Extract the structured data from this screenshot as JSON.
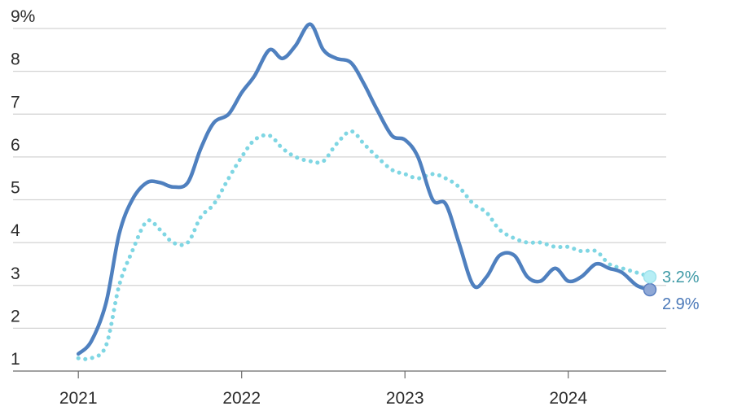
{
  "chart_data": {
    "type": "line",
    "title": "",
    "xlabel": "",
    "ylabel": "",
    "ylim": [
      1,
      9
    ],
    "xlim": [
      2020.6,
      2024.6
    ],
    "y_ticks": [
      {
        "value": 1,
        "label": "1"
      },
      {
        "value": 2,
        "label": "2"
      },
      {
        "value": 3,
        "label": "3"
      },
      {
        "value": 4,
        "label": "4"
      },
      {
        "value": 5,
        "label": "5"
      },
      {
        "value": 6,
        "label": "6"
      },
      {
        "value": 7,
        "label": "7"
      },
      {
        "value": 8,
        "label": "8"
      },
      {
        "value": 9,
        "label": "9%"
      }
    ],
    "x_ticks": [
      {
        "value": 2021,
        "label": "2021"
      },
      {
        "value": 2022,
        "label": "2022"
      },
      {
        "value": 2023,
        "label": "2023"
      },
      {
        "value": 2024,
        "label": "2024"
      }
    ],
    "grid": true,
    "legend": "none",
    "series": [
      {
        "color": "#4f80bf",
        "style": "solid",
        "end_label": "2.9%",
        "points": [
          [
            2021.0,
            1.4
          ],
          [
            2021.08,
            1.7
          ],
          [
            2021.17,
            2.6
          ],
          [
            2021.25,
            4.2
          ],
          [
            2021.33,
            5.0
          ],
          [
            2021.42,
            5.4
          ],
          [
            2021.5,
            5.4
          ],
          [
            2021.58,
            5.3
          ],
          [
            2021.67,
            5.4
          ],
          [
            2021.75,
            6.2
          ],
          [
            2021.83,
            6.8
          ],
          [
            2021.92,
            7.0
          ],
          [
            2022.0,
            7.5
          ],
          [
            2022.08,
            7.9
          ],
          [
            2022.17,
            8.5
          ],
          [
            2022.25,
            8.3
          ],
          [
            2022.33,
            8.6
          ],
          [
            2022.42,
            9.1
          ],
          [
            2022.5,
            8.5
          ],
          [
            2022.58,
            8.3
          ],
          [
            2022.67,
            8.2
          ],
          [
            2022.75,
            7.7
          ],
          [
            2022.83,
            7.1
          ],
          [
            2022.92,
            6.5
          ],
          [
            2023.0,
            6.4
          ],
          [
            2023.08,
            6.0
          ],
          [
            2023.17,
            5.0
          ],
          [
            2023.25,
            4.9
          ],
          [
            2023.33,
            4.0
          ],
          [
            2023.42,
            3.0
          ],
          [
            2023.5,
            3.2
          ],
          [
            2023.58,
            3.7
          ],
          [
            2023.67,
            3.7
          ],
          [
            2023.75,
            3.2
          ],
          [
            2023.83,
            3.1
          ],
          [
            2023.92,
            3.4
          ],
          [
            2024.0,
            3.1
          ],
          [
            2024.08,
            3.2
          ],
          [
            2024.17,
            3.5
          ],
          [
            2024.25,
            3.4
          ],
          [
            2024.33,
            3.3
          ],
          [
            2024.42,
            3.0
          ],
          [
            2024.5,
            2.9
          ]
        ]
      },
      {
        "color": "#7fd6e3",
        "style": "dotted",
        "end_label": "3.2%",
        "points": [
          [
            2021.0,
            1.3
          ],
          [
            2021.08,
            1.3
          ],
          [
            2021.17,
            1.6
          ],
          [
            2021.25,
            3.0
          ],
          [
            2021.33,
            3.8
          ],
          [
            2021.42,
            4.5
          ],
          [
            2021.5,
            4.3
          ],
          [
            2021.58,
            4.0
          ],
          [
            2021.67,
            4.0
          ],
          [
            2021.75,
            4.6
          ],
          [
            2021.83,
            4.9
          ],
          [
            2021.92,
            5.5
          ],
          [
            2022.0,
            6.0
          ],
          [
            2022.08,
            6.4
          ],
          [
            2022.17,
            6.5
          ],
          [
            2022.25,
            6.2
          ],
          [
            2022.33,
            6.0
          ],
          [
            2022.42,
            5.9
          ],
          [
            2022.5,
            5.9
          ],
          [
            2022.58,
            6.3
          ],
          [
            2022.67,
            6.6
          ],
          [
            2022.75,
            6.3
          ],
          [
            2022.83,
            6.0
          ],
          [
            2022.92,
            5.7
          ],
          [
            2023.0,
            5.6
          ],
          [
            2023.08,
            5.5
          ],
          [
            2023.17,
            5.6
          ],
          [
            2023.25,
            5.5
          ],
          [
            2023.33,
            5.3
          ],
          [
            2023.42,
            4.9
          ],
          [
            2023.5,
            4.7
          ],
          [
            2023.58,
            4.3
          ],
          [
            2023.67,
            4.1
          ],
          [
            2023.75,
            4.0
          ],
          [
            2023.83,
            4.0
          ],
          [
            2023.92,
            3.9
          ],
          [
            2024.0,
            3.9
          ],
          [
            2024.08,
            3.8
          ],
          [
            2024.17,
            3.8
          ],
          [
            2024.25,
            3.5
          ],
          [
            2024.33,
            3.4
          ],
          [
            2024.42,
            3.3
          ],
          [
            2024.5,
            3.2
          ]
        ]
      }
    ]
  }
}
